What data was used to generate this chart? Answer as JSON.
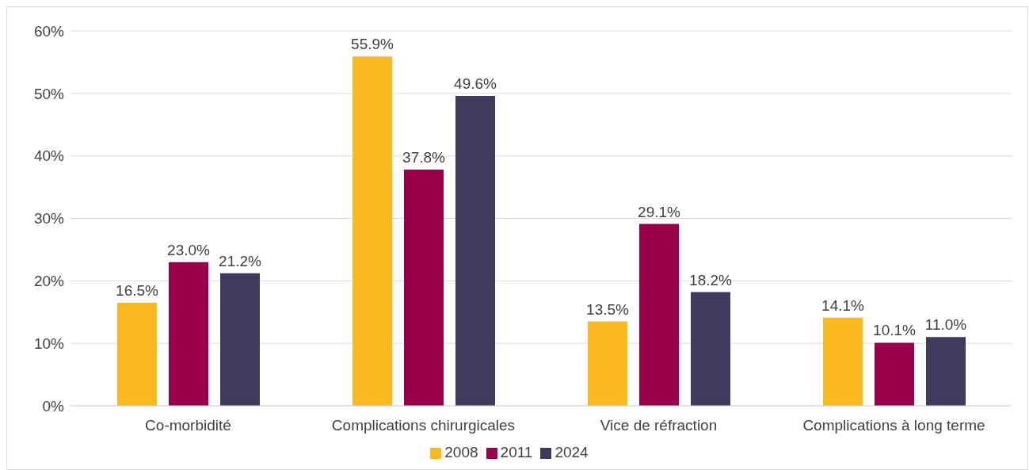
{
  "chart_data": {
    "type": "bar",
    "categories": [
      "Co-morbidité",
      "Complications chirurgicales",
      "Vice de réfraction",
      "Complications à long terme"
    ],
    "series": [
      {
        "name": "2008",
        "color": "#fbb921",
        "values": [
          16.5,
          55.9,
          13.5,
          14.1
        ],
        "value_labels": [
          "16.5%",
          "55.9%",
          "13.5%",
          "14.1%"
        ]
      },
      {
        "name": "2011",
        "color": "#990049",
        "values": [
          23.0,
          37.8,
          29.1,
          10.1
        ],
        "value_labels": [
          "23.0%",
          "37.8%",
          "29.1%",
          "10.1%"
        ]
      },
      {
        "name": "2024",
        "color": "#3f3a5e",
        "values": [
          21.2,
          49.6,
          18.2,
          11.0
        ],
        "value_labels": [
          "21.2%",
          "49.6%",
          "18.2%",
          "11.0%"
        ]
      }
    ],
    "ylim": [
      0,
      60
    ],
    "yticks": [
      {
        "value": 0,
        "label": "0%"
      },
      {
        "value": 10,
        "label": "10%"
      },
      {
        "value": 20,
        "label": "20%"
      },
      {
        "value": 30,
        "label": "30%"
      },
      {
        "value": 40,
        "label": "40%"
      },
      {
        "value": 50,
        "label": "50%"
      },
      {
        "value": 60,
        "label": "60%"
      }
    ],
    "grid": "y",
    "legend": "bottom"
  }
}
